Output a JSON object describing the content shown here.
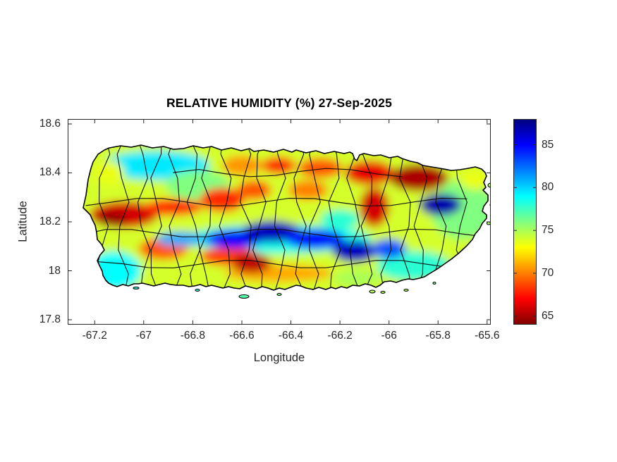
{
  "figure": {
    "title": "RELATIVE HUMIDITY (%) 27-Sep-2025",
    "xlabel": "Longitude",
    "ylabel": "Latitude"
  },
  "chart_data": {
    "type": "heatmap",
    "map_region": "Puerto Rico with municipal boundaries",
    "title": "RELATIVE HUMIDITY (%) 27-Sep-2025",
    "xlabel": "Longitude",
    "ylabel": "Latitude",
    "xlim": [
      -67.31,
      -65.585
    ],
    "ylim": [
      17.78,
      18.62
    ],
    "x_ticks": [
      -67.2,
      -67,
      -66.8,
      -66.6,
      -66.4,
      -66.2,
      -66,
      -65.8,
      -65.6
    ],
    "y_ticks": [
      18.6,
      18.4,
      18.2,
      18,
      17.8
    ],
    "grid": false,
    "legend": "none",
    "colorbar": {
      "position": "right",
      "colormap": "jet (blue = high RH, red = low RH)",
      "range": [
        64,
        88
      ],
      "ticks": [
        65,
        70,
        75,
        80,
        85
      ]
    },
    "background_value_percent": 74,
    "sample_grid": {
      "lon": [
        -67.1,
        -66.9,
        -66.7,
        -66.5,
        -66.3,
        -66.1,
        -65.9,
        -65.7
      ],
      "lat": [
        18.45,
        18.35,
        18.25,
        18.15,
        18.05,
        17.95
      ],
      "rh_percent": [
        [
          75,
          79,
          73,
          70,
          69,
          67,
          66,
          74
        ],
        [
          72,
          76,
          71,
          73,
          71,
          70,
          67,
          75
        ],
        [
          66,
          70,
          68,
          77,
          80,
          72,
          78,
          77
        ],
        [
          73,
          78,
          84,
          85,
          83,
          79,
          73,
          77
        ],
        [
          78,
          73,
          69,
          66,
          72,
          84,
          78,
          76
        ],
        [
          79,
          77,
          73,
          71,
          72,
          74,
          76,
          null
        ]
      ]
    },
    "features": [
      {
        "name": "east-green-wash",
        "lon": -65.7,
        "lat": 18.25,
        "rx": 0.13,
        "ry": 0.12,
        "value": 76
      },
      {
        "name": "nw-coast-cyan",
        "lon": -66.95,
        "lat": 18.43,
        "rx": 0.22,
        "ry": 0.06,
        "value": 79.5
      },
      {
        "name": "nw-inland-green",
        "lon": -66.78,
        "lat": 18.35,
        "rx": 0.13,
        "ry": 0.06,
        "value": 76
      },
      {
        "name": "sw-coast-cyan",
        "lon": -67.12,
        "lat": 18.0,
        "rx": 0.11,
        "ry": 0.08,
        "value": 79
      },
      {
        "name": "se-coast-cyan",
        "lon": -65.9,
        "lat": 18.02,
        "rx": 0.15,
        "ry": 0.06,
        "value": 78
      },
      {
        "name": "ridge-cyan-haze",
        "lon": -66.45,
        "lat": 18.13,
        "rx": 0.38,
        "ry": 0.06,
        "value": 78.5
      },
      {
        "name": "south-coast-orange",
        "lon": -66.45,
        "lat": 17.99,
        "rx": 0.22,
        "ry": 0.035,
        "value": 71
      },
      {
        "name": "guayama-green",
        "lon": -66.13,
        "lat": 17.97,
        "rx": 0.1,
        "ry": 0.035,
        "value": 75
      },
      {
        "name": "aguadilla-yellow",
        "lon": -67.14,
        "lat": 18.4,
        "rx": 0.06,
        "ry": 0.05,
        "value": 73.5
      },
      {
        "name": "west-red",
        "lon": -67.08,
        "lat": 18.23,
        "rx": 0.14,
        "ry": 0.055,
        "value": 66
      },
      {
        "name": "west-red-core",
        "lon": -67.13,
        "lat": 18.21,
        "rx": 0.06,
        "ry": 0.03,
        "value": 64.5
      },
      {
        "name": "west-red-streak",
        "lon": -66.88,
        "lat": 18.26,
        "rx": 0.12,
        "ry": 0.035,
        "value": 68
      },
      {
        "name": "utuado-red",
        "lon": -66.68,
        "lat": 18.29,
        "rx": 0.09,
        "ry": 0.05,
        "value": 68
      },
      {
        "name": "ciales-red",
        "lon": -66.55,
        "lat": 18.33,
        "rx": 0.07,
        "ry": 0.04,
        "value": 69
      },
      {
        "name": "corozal-orange",
        "lon": -66.33,
        "lat": 18.33,
        "rx": 0.08,
        "ry": 0.04,
        "value": 70
      },
      {
        "name": "arecibo-orange",
        "lon": -66.6,
        "lat": 18.43,
        "rx": 0.08,
        "ry": 0.04,
        "value": 70.5
      },
      {
        "name": "vega-baja-red",
        "lon": -66.45,
        "lat": 18.43,
        "rx": 0.07,
        "ry": 0.035,
        "value": 68
      },
      {
        "name": "toa-baja-orange",
        "lon": -66.28,
        "lat": 18.42,
        "rx": 0.09,
        "ry": 0.04,
        "value": 69
      },
      {
        "name": "san-juan-red",
        "lon": -66.08,
        "lat": 18.4,
        "rx": 0.1,
        "ry": 0.05,
        "value": 66.5
      },
      {
        "name": "northeast-dark-red",
        "lon": -65.88,
        "lat": 18.38,
        "rx": 0.12,
        "ry": 0.055,
        "value": 65
      },
      {
        "name": "caguas-red",
        "lon": -66.06,
        "lat": 18.26,
        "rx": 0.06,
        "ry": 0.08,
        "value": 66
      },
      {
        "name": "yauco-red",
        "lon": -66.92,
        "lat": 18.09,
        "rx": 0.1,
        "ry": 0.045,
        "value": 69
      },
      {
        "name": "penuelas-red",
        "lon": -66.65,
        "lat": 18.06,
        "rx": 0.12,
        "ry": 0.04,
        "value": 68.5
      },
      {
        "name": "south-central-dark-red",
        "lon": -66.56,
        "lat": 18.03,
        "rx": 0.08,
        "ry": 0.04,
        "value": 65.5
      },
      {
        "name": "fajardo-yellow",
        "lon": -65.65,
        "lat": 18.37,
        "rx": 0.06,
        "ry": 0.04,
        "value": 73.5
      },
      {
        "name": "cidra-cyan",
        "lon": -66.2,
        "lat": 18.21,
        "rx": 0.08,
        "ry": 0.04,
        "value": 78
      },
      {
        "name": "ridge-blue-west",
        "lon": -66.85,
        "lat": 18.13,
        "rx": 0.1,
        "ry": 0.03,
        "value": 81
      },
      {
        "name": "ridge-blue-1",
        "lon": -66.63,
        "lat": 18.13,
        "rx": 0.12,
        "ry": 0.038,
        "value": 85
      },
      {
        "name": "ridge-blue-2",
        "lon": -66.48,
        "lat": 18.16,
        "rx": 0.12,
        "ry": 0.045,
        "value": 86.5
      },
      {
        "name": "ridge-blue-3",
        "lon": -66.3,
        "lat": 18.13,
        "rx": 0.12,
        "ry": 0.04,
        "value": 85
      },
      {
        "name": "ridge-blue-4",
        "lon": -66.14,
        "lat": 18.08,
        "rx": 0.09,
        "ry": 0.045,
        "value": 86.5
      },
      {
        "name": "ridge-blue-5",
        "lon": -66.0,
        "lat": 18.09,
        "rx": 0.07,
        "ry": 0.04,
        "value": 83
      },
      {
        "name": "el-yunque-blue",
        "lon": -65.79,
        "lat": 18.27,
        "rx": 0.085,
        "ry": 0.045,
        "value": 87
      }
    ]
  }
}
